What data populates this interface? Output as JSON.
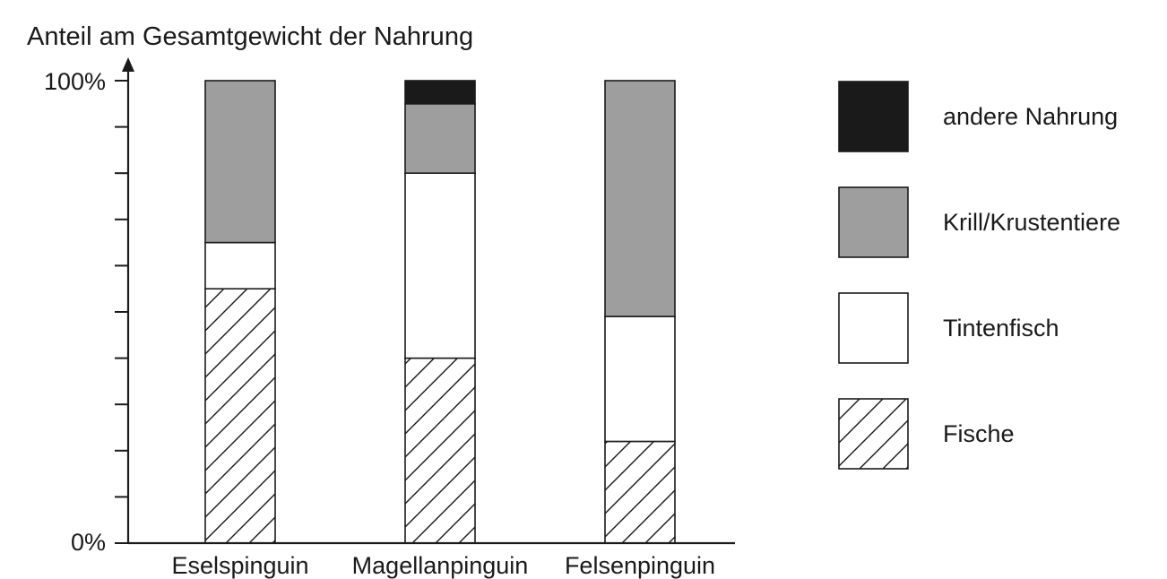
{
  "chart_data": {
    "type": "bar",
    "stacked": true,
    "ylabel": "Anteil am Gesamtgewicht der Nahrung",
    "ylim": [
      0,
      100
    ],
    "y_tick_labels": {
      "min": "0%",
      "max": "100%"
    },
    "y_ticks": [
      0,
      10,
      20,
      30,
      40,
      50,
      60,
      70,
      80,
      90,
      100
    ],
    "categories": [
      "Eselspinguin",
      "Magellanpinguin",
      "Felsenpinguin"
    ],
    "series": [
      {
        "name": "Fische",
        "values": [
          55,
          40,
          22
        ],
        "color": "#ffffff",
        "pattern": "hatch"
      },
      {
        "name": "Tintenfisch",
        "values": [
          10,
          40,
          27
        ],
        "color": "#ffffff",
        "pattern": "none"
      },
      {
        "name": "Krill/Krustentiere",
        "values": [
          35,
          15,
          51
        ],
        "color": "#9e9e9e",
        "pattern": "none"
      },
      {
        "name": "andere Nahrung",
        "values": [
          0,
          5,
          0
        ],
        "color": "#1a1a1a",
        "pattern": "none"
      }
    ],
    "legend": {
      "placement": "right",
      "order": [
        "andere Nahrung",
        "Krill/Krustentiere",
        "Tintenfisch",
        "Fische"
      ]
    },
    "grid": false
  }
}
